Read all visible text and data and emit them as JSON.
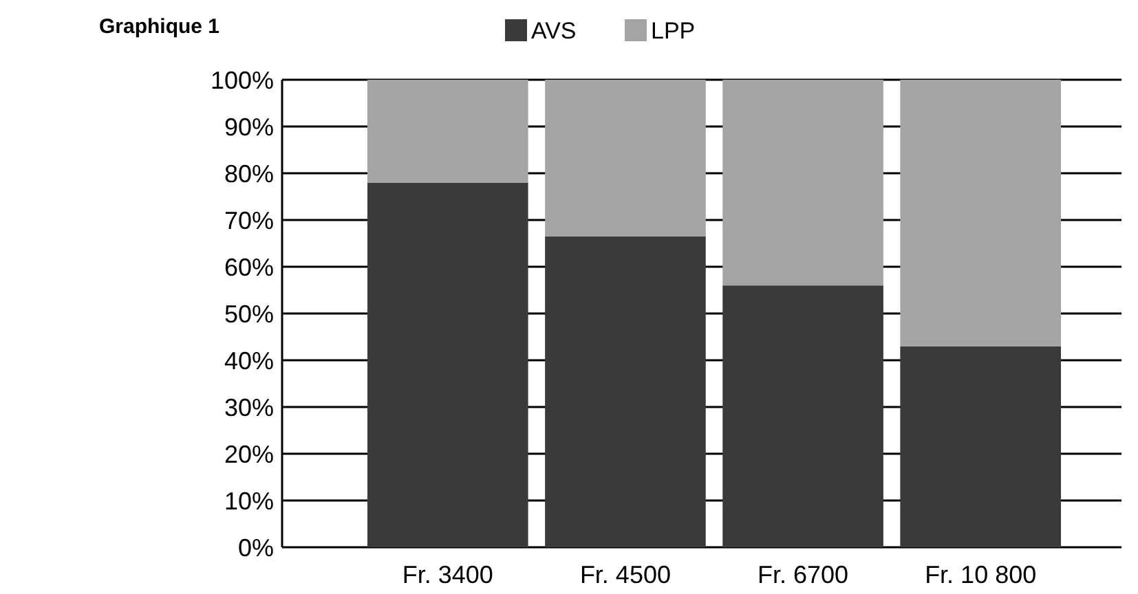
{
  "chart_data": {
    "type": "bar",
    "title": "Graphique 1",
    "categories": [
      "Fr. 3400",
      "Fr. 4500",
      "Fr. 6700",
      "Fr. 10 800"
    ],
    "stacked": true,
    "series": [
      {
        "name": "AVS",
        "color": "#3a3a3a",
        "values": [
          78,
          66.5,
          56,
          43
        ]
      },
      {
        "name": "LPP",
        "color": "#a5a5a5",
        "values": [
          22,
          33.5,
          44,
          57
        ]
      }
    ],
    "ylim": [
      0,
      100
    ],
    "yticks": [
      {
        "value": 0,
        "label": "0%"
      },
      {
        "value": 10,
        "label": "10%"
      },
      {
        "value": 20,
        "label": "20%"
      },
      {
        "value": 30,
        "label": "30%"
      },
      {
        "value": 40,
        "label": "40%"
      },
      {
        "value": 50,
        "label": "50%"
      },
      {
        "value": 60,
        "label": "60%"
      },
      {
        "value": 70,
        "label": "70%"
      },
      {
        "value": 80,
        "label": "80%"
      },
      {
        "value": 90,
        "label": "90%"
      },
      {
        "value": 100,
        "label": "100%"
      }
    ],
    "grid": "y",
    "legend": "top"
  }
}
